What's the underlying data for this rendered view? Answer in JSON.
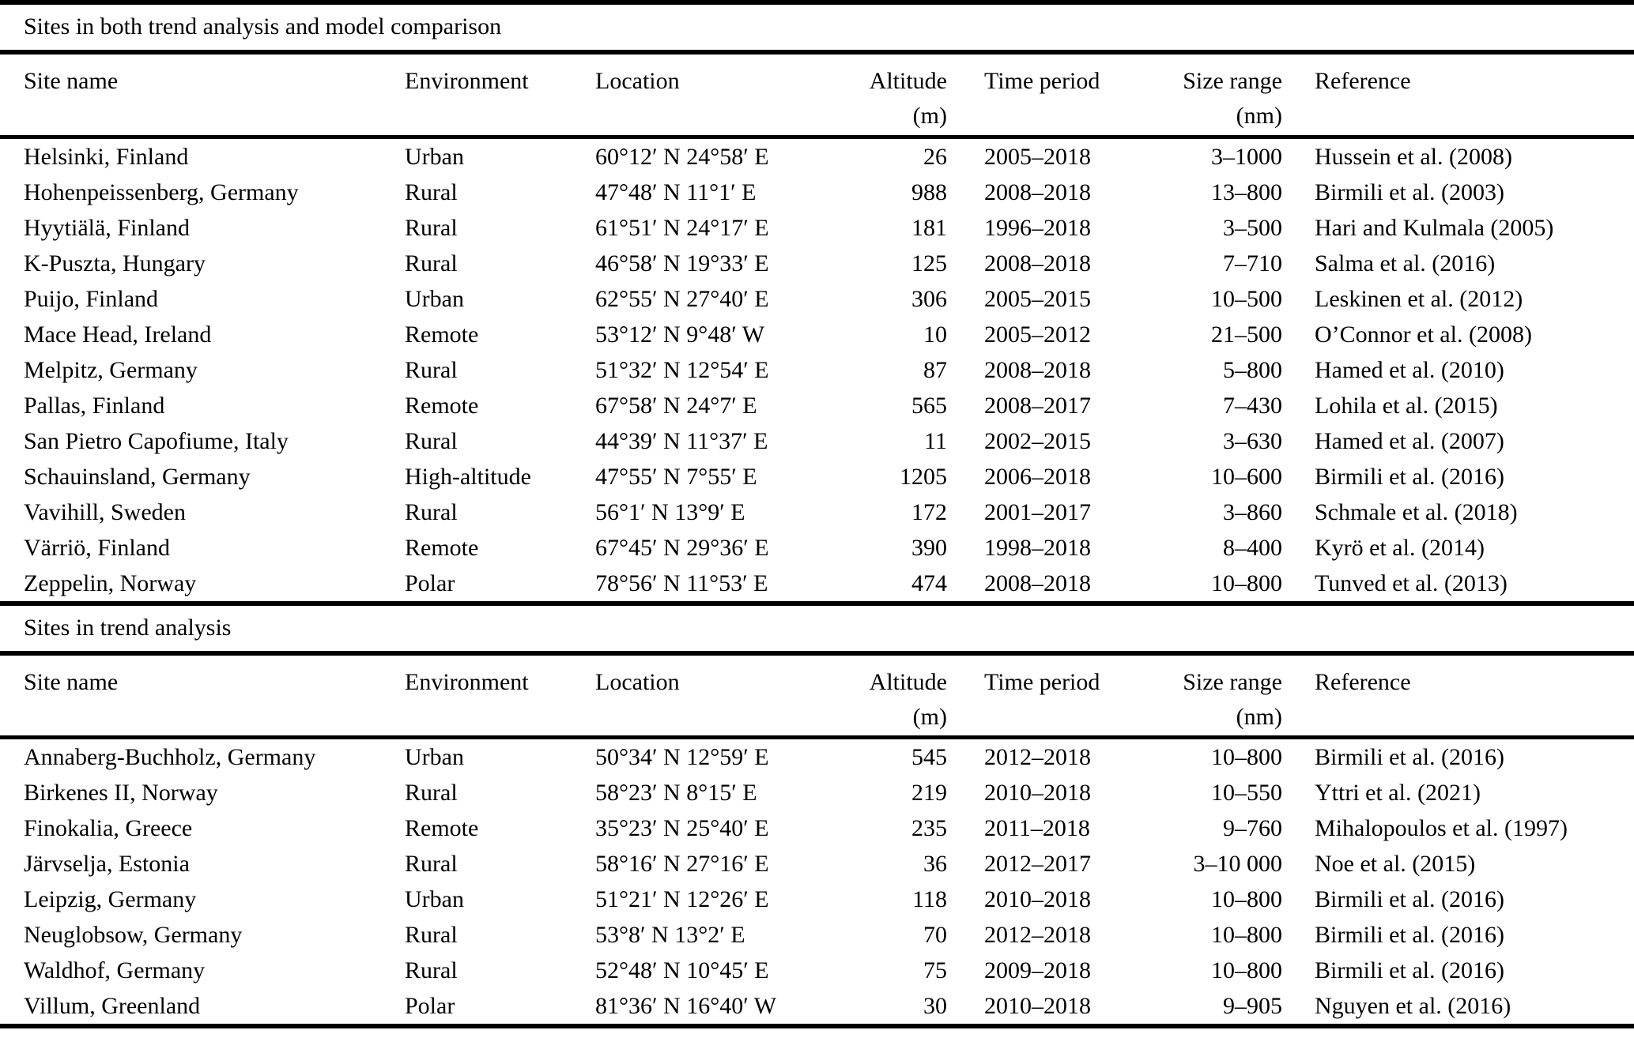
{
  "table": {
    "columns": [
      {
        "key": "site-name",
        "label": "Site name",
        "unit": ""
      },
      {
        "key": "environment",
        "label": "Environment",
        "unit": ""
      },
      {
        "key": "location",
        "label": "Location",
        "unit": ""
      },
      {
        "key": "altitude",
        "label": "Altitude",
        "unit": "(m)"
      },
      {
        "key": "time-period",
        "label": "Time period",
        "unit": ""
      },
      {
        "key": "size-range",
        "label": "Size range",
        "unit": "(nm)"
      },
      {
        "key": "reference",
        "label": "Reference",
        "unit": ""
      }
    ],
    "sections": [
      {
        "title": "Sites in both trend analysis and model comparison",
        "rows": [
          [
            "Helsinki, Finland",
            "Urban",
            "60°12′ N 24°58′ E",
            "26",
            "2005–2018",
            "3–1000",
            "Hussein et al. (2008)"
          ],
          [
            "Hohenpeissenberg, Germany",
            "Rural",
            "47°48′ N 11°1′ E",
            "988",
            "2008–2018",
            "13–800",
            "Birmili et al. (2003)"
          ],
          [
            "Hyytiälä, Finland",
            "Rural",
            "61°51′ N 24°17′ E",
            "181",
            "1996–2018",
            "3–500",
            "Hari and Kulmala (2005)"
          ],
          [
            "K-Puszta, Hungary",
            "Rural",
            "46°58′ N 19°33′ E",
            "125",
            "2008–2018",
            "7–710",
            "Salma et al. (2016)"
          ],
          [
            "Puijo, Finland",
            "Urban",
            "62°55′ N 27°40′ E",
            "306",
            "2005–2015",
            "10–500",
            "Leskinen et al. (2012)"
          ],
          [
            "Mace Head, Ireland",
            "Remote",
            "53°12′ N 9°48′ W",
            "10",
            "2005–2012",
            "21–500",
            "O’Connor et al. (2008)"
          ],
          [
            "Melpitz, Germany",
            "Rural",
            "51°32′ N 12°54′ E",
            "87",
            "2008–2018",
            "5–800",
            "Hamed et al. (2010)"
          ],
          [
            "Pallas, Finland",
            "Remote",
            "67°58′ N 24°7′ E",
            "565",
            "2008–2017",
            "7–430",
            "Lohila et al. (2015)"
          ],
          [
            "San Pietro Capofiume, Italy",
            "Rural",
            "44°39′ N 11°37′ E",
            "11",
            "2002–2015",
            "3–630",
            "Hamed et al. (2007)"
          ],
          [
            "Schauinsland, Germany",
            "High-altitude",
            "47°55′ N 7°55′ E",
            "1205",
            "2006–2018",
            "10–600",
            "Birmili et al. (2016)"
          ],
          [
            "Vavihill, Sweden",
            "Rural",
            "56°1′ N 13°9′ E",
            "172",
            "2001–2017",
            "3–860",
            "Schmale et al. (2018)"
          ],
          [
            "Värriö, Finland",
            "Remote",
            "67°45′ N 29°36′ E",
            "390",
            "1998–2018",
            "8–400",
            "Kyrö et al. (2014)"
          ],
          [
            "Zeppelin, Norway",
            "Polar",
            "78°56′ N 11°53′ E",
            "474",
            "2008–2018",
            "10–800",
            "Tunved et al. (2013)"
          ]
        ]
      },
      {
        "title": "Sites in trend analysis",
        "rows": [
          [
            "Annaberg-Buchholz, Germany",
            "Urban",
            "50°34′ N 12°59′ E",
            "545",
            "2012–2018",
            "10–800",
            "Birmili et al. (2016)"
          ],
          [
            "Birkenes II, Norway",
            "Rural",
            "58°23′ N 8°15′ E",
            "219",
            "2010–2018",
            "10–550",
            "Yttri et al. (2021)"
          ],
          [
            "Finokalia, Greece",
            "Remote",
            "35°23′ N 25°40′ E",
            "235",
            "2011–2018",
            "9–760",
            "Mihalopoulos et al. (1997)"
          ],
          [
            "Järvselja, Estonia",
            "Rural",
            "58°16′ N 27°16′ E",
            "36",
            "2012–2017",
            "3–10 000",
            "Noe et al. (2015)"
          ],
          [
            "Leipzig, Germany",
            "Urban",
            "51°21′ N 12°26′ E",
            "118",
            "2010–2018",
            "10–800",
            "Birmili et al. (2016)"
          ],
          [
            "Neuglobsow, Germany",
            "Rural",
            "53°8′ N 13°2′ E",
            "70",
            "2012–2018",
            "10–800",
            "Birmili et al. (2016)"
          ],
          [
            "Waldhof, Germany",
            "Rural",
            "52°48′ N 10°45′ E",
            "75",
            "2009–2018",
            "10–800",
            "Birmili et al. (2016)"
          ],
          [
            "Villum, Greenland",
            "Polar",
            "81°36′ N 16°40′ W",
            "30",
            "2010–2018",
            "9–905",
            "Nguyen et al. (2016)"
          ]
        ]
      }
    ]
  }
}
